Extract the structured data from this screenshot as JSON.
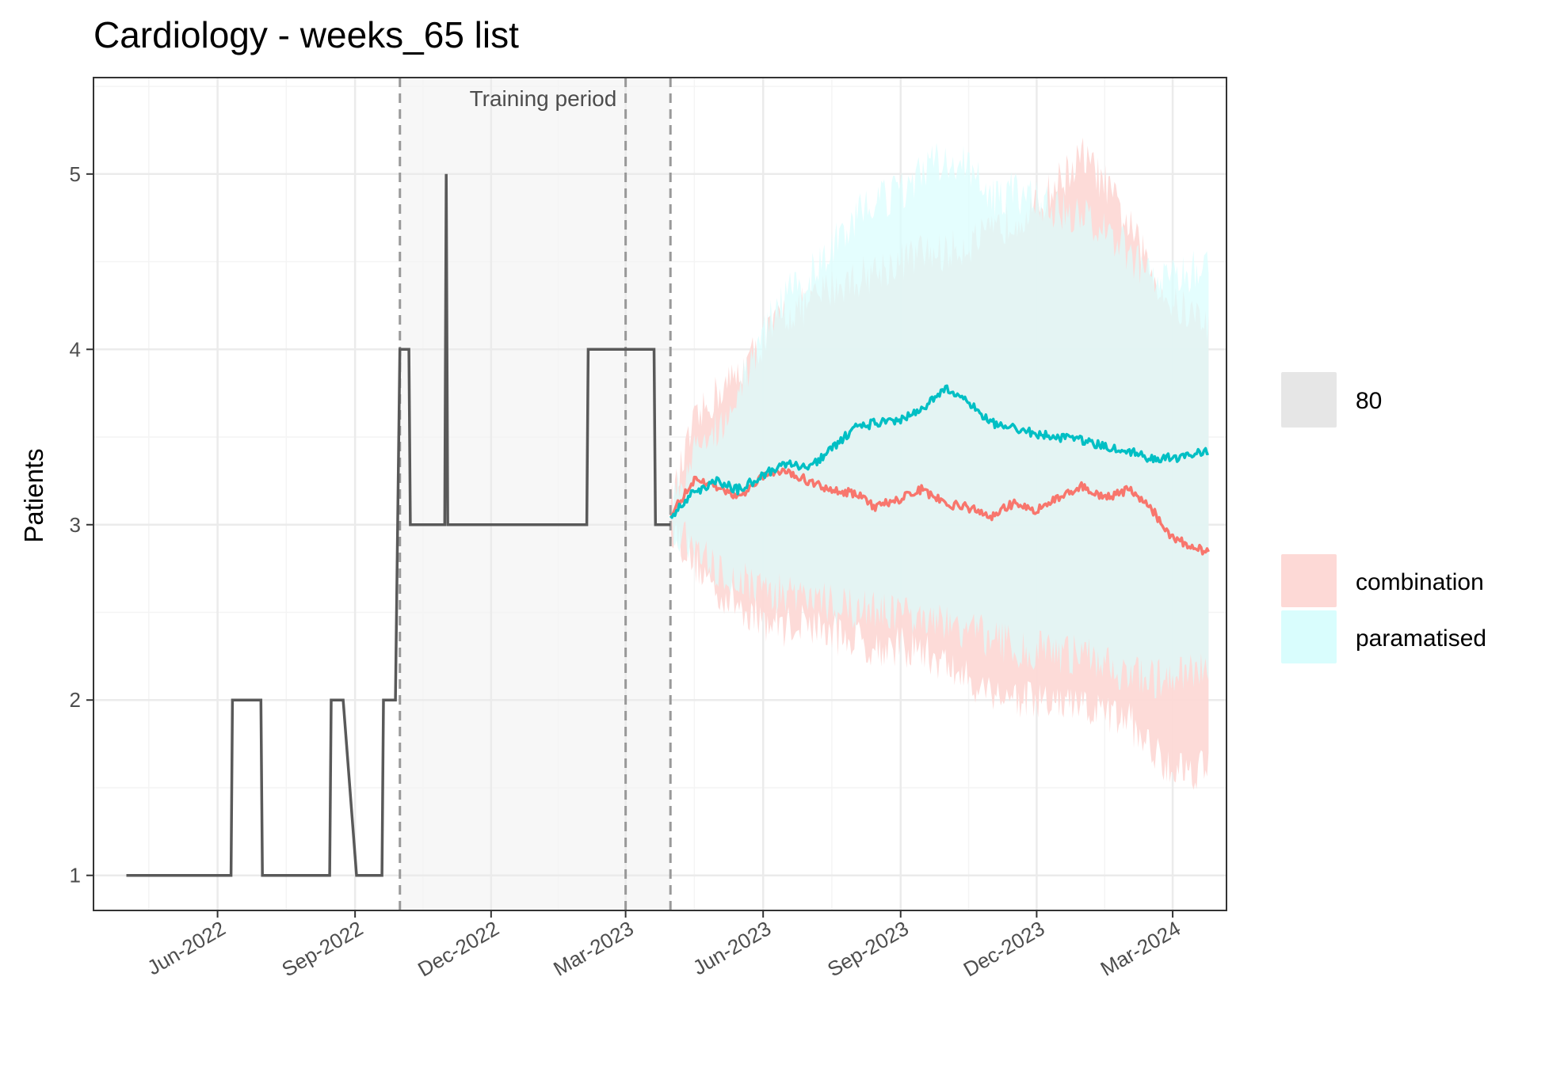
{
  "chart_data": {
    "type": "line",
    "title": "Cardiology - weeks_65 list",
    "ylabel": "Patients",
    "xlabel": "",
    "x_axis_type": "date",
    "xlim": [
      "2022-03-10",
      "2024-04-06"
    ],
    "ylim": [
      0.8,
      5.55
    ],
    "y_ticks": [
      1,
      2,
      3,
      4,
      5
    ],
    "x_ticks": [
      {
        "date": "2022-06-01",
        "label": "Jun-2022"
      },
      {
        "date": "2022-09-01",
        "label": "Sep-2022"
      },
      {
        "date": "2022-12-01",
        "label": "Dec-2022"
      },
      {
        "date": "2023-03-01",
        "label": "Mar-2023"
      },
      {
        "date": "2023-06-01",
        "label": "Jun-2023"
      },
      {
        "date": "2023-09-01",
        "label": "Sep-2023"
      },
      {
        "date": "2023-12-01",
        "label": "Dec-2023"
      },
      {
        "date": "2024-03-01",
        "label": "Mar-2024"
      }
    ],
    "grid": true,
    "training_period": {
      "label": "Training period",
      "start": "2022-10-01",
      "end": "2023-03-31"
    },
    "vlines": [
      "2022-10-01",
      "2023-03-01",
      "2023-03-31"
    ],
    "colors": {
      "history_line": "#595959",
      "combination_line": "#F8766D",
      "combination_band": "#FDD9D6",
      "paramatised_line": "#00BFC4",
      "paramatised_band": "#D9FDFD",
      "overlap_band": "#DAF2F1",
      "interval_key": "#E6E6E6",
      "training_shade": "#F7F7F7",
      "vline": "#999999",
      "panel_border": "#333333",
      "grid_major": "#EBEBEB",
      "grid_minor": "#F4F4F4"
    },
    "legend": {
      "position": "right",
      "interval_entries": [
        {
          "label": "80"
        }
      ],
      "series_entries": [
        {
          "label": "combination"
        },
        {
          "label": "paramatised"
        }
      ]
    },
    "history": {
      "name": "observed",
      "points": [
        [
          "2022-04-01",
          1
        ],
        [
          "2022-06-10",
          1
        ],
        [
          "2022-06-11",
          2
        ],
        [
          "2022-06-30",
          2
        ],
        [
          "2022-07-01",
          1
        ],
        [
          "2022-08-15",
          1
        ],
        [
          "2022-08-16",
          2
        ],
        [
          "2022-08-24",
          2
        ],
        [
          "2022-09-02",
          1
        ],
        [
          "2022-09-19",
          1
        ],
        [
          "2022-09-20",
          2
        ],
        [
          "2022-09-28",
          2
        ],
        [
          "2022-10-01",
          4
        ],
        [
          "2022-10-07",
          4
        ],
        [
          "2022-10-08",
          3
        ],
        [
          "2022-10-31",
          3
        ],
        [
          "2022-11-01",
          5
        ],
        [
          "2022-11-02",
          3
        ],
        [
          "2023-02-03",
          3
        ],
        [
          "2023-02-04",
          4
        ],
        [
          "2023-03-20",
          4
        ],
        [
          "2023-03-21",
          3
        ],
        [
          "2023-03-31",
          3
        ]
      ]
    },
    "series": [
      {
        "name": "combination",
        "x": [
          "2023-03-31",
          "2023-04-15",
          "2023-05-01",
          "2023-05-15",
          "2023-06-01",
          "2023-06-15",
          "2023-07-01",
          "2023-07-15",
          "2023-08-01",
          "2023-08-15",
          "2023-09-01",
          "2023-09-15",
          "2023-10-01",
          "2023-10-15",
          "2023-11-01",
          "2023-11-15",
          "2023-12-01",
          "2023-12-15",
          "2024-01-01",
          "2024-01-15",
          "2024-02-01",
          "2024-02-15",
          "2024-03-01",
          "2024-03-15",
          "2024-03-25"
        ],
        "values": [
          3.05,
          3.25,
          3.22,
          3.15,
          3.28,
          3.32,
          3.25,
          3.2,
          3.18,
          3.1,
          3.15,
          3.2,
          3.12,
          3.1,
          3.05,
          3.12,
          3.08,
          3.15,
          3.22,
          3.15,
          3.2,
          3.1,
          2.92,
          2.88,
          2.84
        ],
        "lower": [
          3.0,
          2.8,
          2.62,
          2.55,
          2.45,
          2.42,
          2.45,
          2.38,
          2.35,
          2.3,
          2.3,
          2.28,
          2.2,
          2.12,
          2.05,
          2.02,
          1.98,
          1.98,
          1.95,
          1.92,
          1.88,
          1.72,
          1.62,
          1.6,
          1.65
        ],
        "upper": [
          3.1,
          3.55,
          3.75,
          3.85,
          4.05,
          4.2,
          4.25,
          4.35,
          4.4,
          4.45,
          4.5,
          4.55,
          4.55,
          4.6,
          4.65,
          4.75,
          4.8,
          4.95,
          5.1,
          4.95,
          4.7,
          4.45,
          4.25,
          4.2,
          4.15
        ]
      },
      {
        "name": "paramatised",
        "x": [
          "2023-03-31",
          "2023-04-15",
          "2023-05-01",
          "2023-05-15",
          "2023-06-01",
          "2023-06-15",
          "2023-07-01",
          "2023-07-15",
          "2023-08-01",
          "2023-08-15",
          "2023-09-01",
          "2023-09-15",
          "2023-10-01",
          "2023-10-15",
          "2023-11-01",
          "2023-11-15",
          "2023-12-01",
          "2023-12-15",
          "2024-01-01",
          "2024-01-15",
          "2024-02-01",
          "2024-02-15",
          "2024-03-01",
          "2024-03-15",
          "2024-03-25"
        ],
        "values": [
          3.05,
          3.18,
          3.25,
          3.2,
          3.28,
          3.35,
          3.32,
          3.42,
          3.55,
          3.58,
          3.6,
          3.65,
          3.78,
          3.7,
          3.58,
          3.55,
          3.52,
          3.5,
          3.48,
          3.45,
          3.42,
          3.38,
          3.38,
          3.4,
          3.42
        ],
        "lower": [
          3.0,
          2.85,
          2.75,
          2.7,
          2.65,
          2.6,
          2.58,
          2.55,
          2.52,
          2.5,
          2.48,
          2.45,
          2.42,
          2.4,
          2.35,
          2.3,
          2.28,
          2.26,
          2.25,
          2.2,
          2.15,
          2.12,
          2.12,
          2.15,
          2.2
        ],
        "upper": [
          3.1,
          3.4,
          3.55,
          3.75,
          4.1,
          4.3,
          4.4,
          4.55,
          4.75,
          4.85,
          4.9,
          5.0,
          5.1,
          5.05,
          4.85,
          4.9,
          4.85,
          4.8,
          4.75,
          4.7,
          4.55,
          4.4,
          4.4,
          4.45,
          4.5
        ]
      }
    ]
  }
}
